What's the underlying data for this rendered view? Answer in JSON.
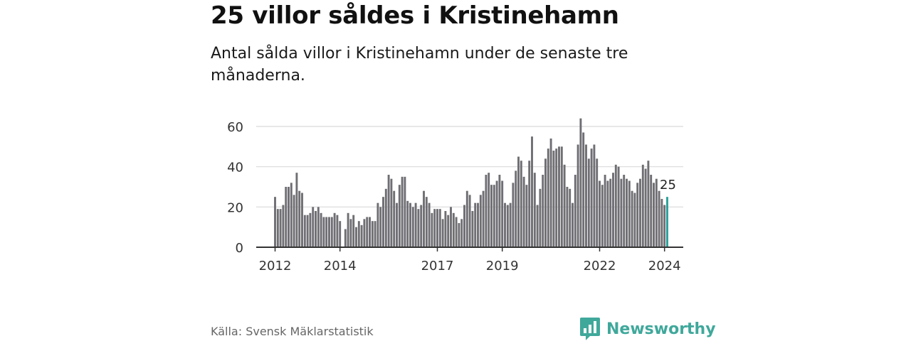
{
  "header": {
    "title": "25 villor såldes i Kristinehamn",
    "subtitle": "Antal sålda villor i Kristinehamn under de senaste tre månaderna."
  },
  "footer": {
    "source": "Källa: Svensk Mäklarstatistik",
    "brand": "Newsworthy",
    "brand_icon": "bar-chart-speech-icon"
  },
  "colors": {
    "bar": "#6e6e73",
    "highlight": "#2aa198",
    "grid": "#d9d9d9",
    "axis": "#333333",
    "text": "#333333",
    "brand": "#3fa89b"
  },
  "chart_data": {
    "type": "bar",
    "title": "Antal sålda villor i Kristinehamn",
    "xlabel": "",
    "ylabel": "",
    "ylim": [
      0,
      65
    ],
    "yticks": [
      0,
      20,
      40,
      60
    ],
    "xticks": [
      "2012",
      "2014",
      "2017",
      "2019",
      "2022",
      "2024"
    ],
    "grid": true,
    "start": "2012-01",
    "frequency": "monthly",
    "highlight_label": "25",
    "values": [
      25,
      19,
      19,
      21,
      30,
      30,
      32,
      26,
      37,
      28,
      27,
      16,
      16,
      17,
      20,
      18,
      20,
      17,
      15,
      15,
      15,
      15,
      17,
      16,
      13,
      0,
      9,
      17,
      14,
      16,
      10,
      13,
      11,
      14,
      15,
      15,
      13,
      13,
      22,
      20,
      25,
      29,
      36,
      34,
      28,
      22,
      31,
      35,
      35,
      23,
      22,
      20,
      22,
      19,
      21,
      28,
      25,
      22,
      17,
      19,
      19,
      19,
      14,
      18,
      16,
      20,
      17,
      15,
      12,
      14,
      21,
      28,
      26,
      18,
      22,
      22,
      26,
      28,
      36,
      37,
      31,
      31,
      33,
      36,
      33,
      22,
      21,
      22,
      32,
      38,
      45,
      43,
      35,
      31,
      43,
      55,
      37,
      21,
      29,
      36,
      44,
      49,
      54,
      48,
      49,
      50,
      50,
      41,
      30,
      29,
      22,
      36,
      51,
      64,
      57,
      51,
      44,
      49,
      51,
      44,
      33,
      31,
      36,
      33,
      34,
      37,
      41,
      40,
      34,
      36,
      34,
      33,
      28,
      27,
      32,
      34,
      41,
      39,
      43,
      36,
      32,
      34,
      28,
      24,
      21,
      25
    ]
  }
}
